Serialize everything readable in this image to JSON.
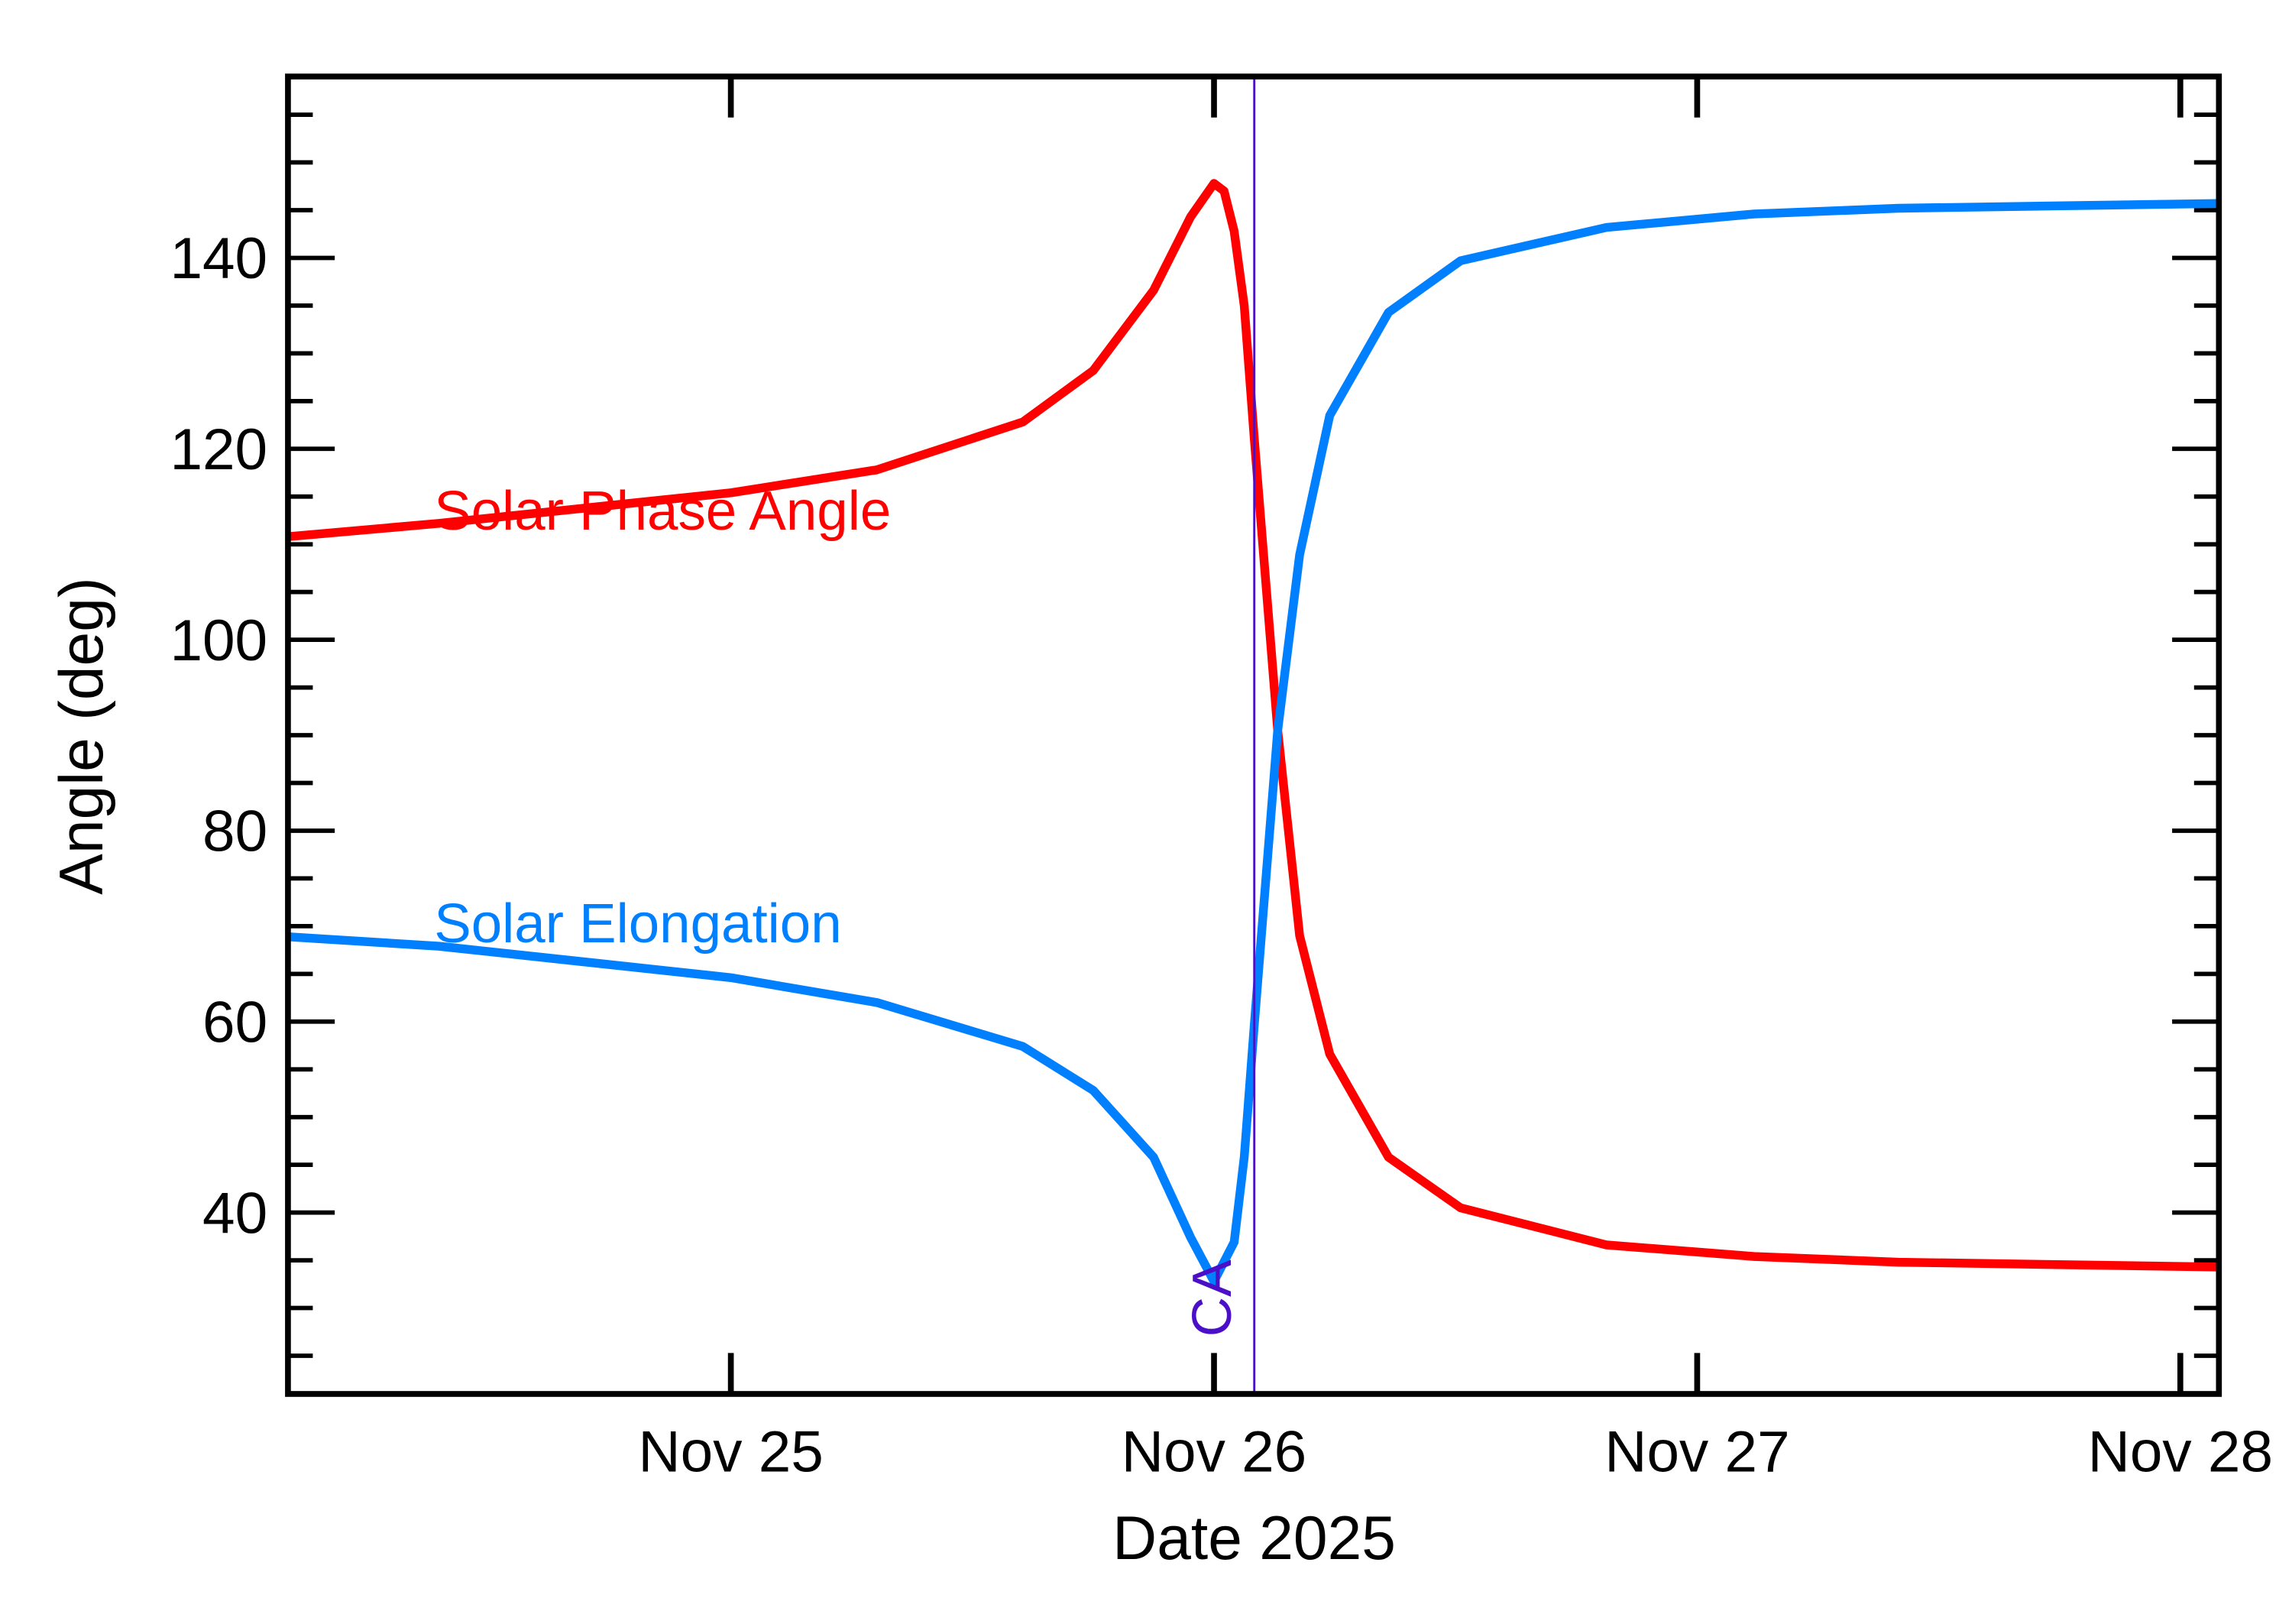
{
  "chart_data": {
    "type": "line",
    "title": "",
    "xlabel": "Date 2025",
    "ylabel": "Angle (deg)",
    "xlim": [
      "2025-11-24T02:00",
      "2025-11-28T01:55"
    ],
    "ylim": [
      21,
      159
    ],
    "x_ticks": [
      {
        "label": "Nov 25",
        "value": "2025-11-25T00:00"
      },
      {
        "label": "Nov 26",
        "value": "2025-11-26T00:00"
      },
      {
        "label": "Nov 27",
        "value": "2025-11-27T00:00"
      },
      {
        "label": "Nov 28",
        "value": "2025-11-28T00:00"
      }
    ],
    "y_ticks": [
      "40",
      "60",
      "80",
      "100",
      "120",
      "140"
    ],
    "y_minor_step": 5,
    "grid": false,
    "legend": "none",
    "series": [
      {
        "name": "Solar Phase Angle",
        "color": "#ff0000",
        "x": [
          "2025-11-24T02:00",
          "2025-11-24T09:30",
          "2025-11-25T00:00",
          "2025-11-25T07:15",
          "2025-11-25T14:30",
          "2025-11-25T18:00",
          "2025-11-25T21:00",
          "2025-11-25T22:50",
          "2025-11-26T00:00",
          "2025-11-26T00:30",
          "2025-11-26T01:00",
          "2025-11-26T01:30",
          "2025-11-26T02:00",
          "2025-11-26T03:10",
          "2025-11-26T04:15",
          "2025-11-26T05:45",
          "2025-11-26T08:40",
          "2025-11-26T12:15",
          "2025-11-26T19:30",
          "2025-11-27T02:50",
          "2025-11-27T10:00",
          "2025-11-28T01:55"
        ],
        "y": [
          110.8,
          112.2,
          115.4,
          117.8,
          122.8,
          128.2,
          136.6,
          144.3,
          147.8,
          147.0,
          142.8,
          135.0,
          121.0,
          90.5,
          69.0,
          56.6,
          45.8,
          40.5,
          36.6,
          35.4,
          34.8,
          34.3
        ]
      },
      {
        "name": "Solar Elongation",
        "color": "#0080ff",
        "x": [
          "2025-11-24T02:00",
          "2025-11-24T09:30",
          "2025-11-25T00:00",
          "2025-11-25T07:15",
          "2025-11-25T14:30",
          "2025-11-25T18:00",
          "2025-11-25T21:00",
          "2025-11-25T22:50",
          "2025-11-26T00:00",
          "2025-11-26T01:00",
          "2025-11-26T01:30",
          "2025-11-26T02:00",
          "2025-11-26T03:10",
          "2025-11-26T04:15",
          "2025-11-26T05:45",
          "2025-11-26T08:40",
          "2025-11-26T12:15",
          "2025-11-26T19:30",
          "2025-11-27T02:50",
          "2025-11-27T10:00",
          "2025-11-28T01:55"
        ],
        "y": [
          68.9,
          67.9,
          64.6,
          62.0,
          57.4,
          52.8,
          45.8,
          37.4,
          32.8,
          36.9,
          45.8,
          59.7,
          90.5,
          108.9,
          123.5,
          134.3,
          139.7,
          143.2,
          144.6,
          145.2,
          145.7
        ]
      }
    ],
    "annotations": [
      {
        "text": "Solar Phase Angle",
        "color": "#ff0000"
      },
      {
        "text": "Solar Elongation",
        "color": "#0080ff"
      },
      {
        "text": "CA",
        "color": "#4b0fc8",
        "x": "2025-11-26T02:00"
      }
    ],
    "ca_line_color": "#4b0fc8"
  }
}
